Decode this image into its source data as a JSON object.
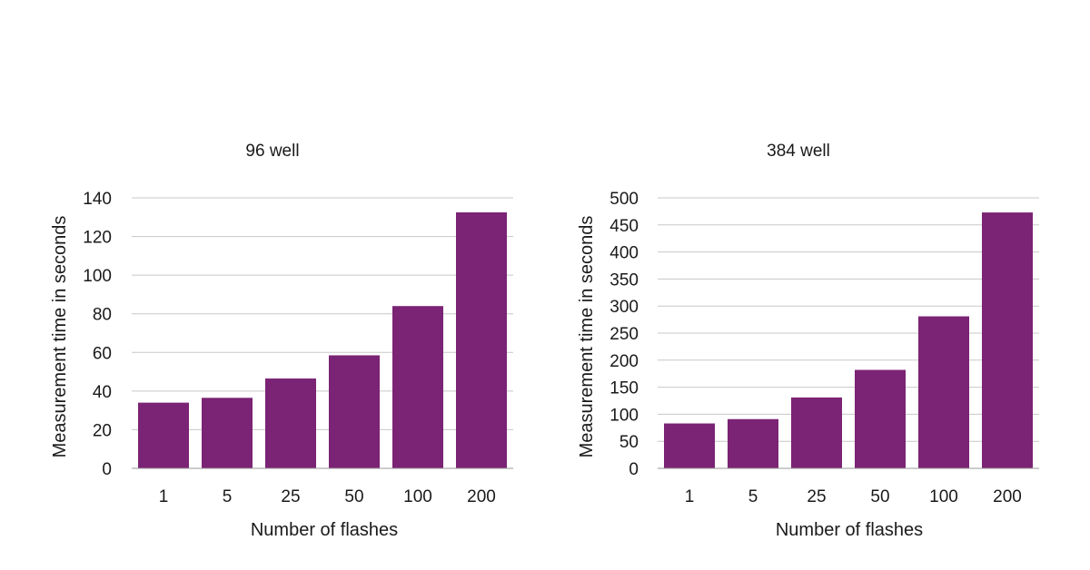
{
  "chart_data": [
    {
      "type": "bar",
      "title": "96 well",
      "xlabel": "Number of flashes",
      "ylabel": "Measurement time in seconds",
      "categories": [
        "1",
        "5",
        "25",
        "50",
        "100",
        "200"
      ],
      "values": [
        34,
        36.5,
        46.5,
        58.5,
        84,
        132.5
      ],
      "ylim": [
        0,
        140
      ],
      "yticks": [
        0,
        20,
        40,
        60,
        80,
        100,
        120,
        140
      ],
      "grid": true,
      "color": "#7b2374"
    },
    {
      "type": "bar",
      "title": "384 well",
      "xlabel": "Number of flashes",
      "ylabel": "Measurement time in seconds",
      "categories": [
        "1",
        "5",
        "25",
        "50",
        "100",
        "200"
      ],
      "values": [
        83,
        91,
        131,
        182,
        281,
        473
      ],
      "ylim": [
        0,
        500
      ],
      "yticks": [
        0,
        50,
        100,
        150,
        200,
        250,
        300,
        350,
        400,
        450,
        500
      ],
      "grid": true,
      "color": "#7b2374"
    }
  ]
}
